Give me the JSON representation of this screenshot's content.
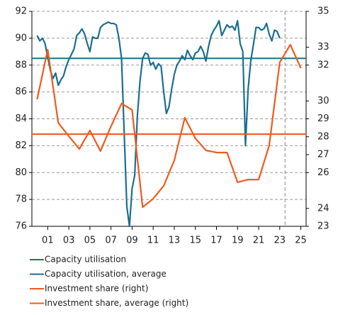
{
  "chart_data": {
    "type": "line",
    "xlim": [
      1999.5,
      2025.5
    ],
    "xticks": [
      {
        "value": 2001,
        "label": "01"
      },
      {
        "value": 2003,
        "label": "03"
      },
      {
        "value": 2005,
        "label": "05"
      },
      {
        "value": 2007,
        "label": "07"
      },
      {
        "value": 2009,
        "label": "09"
      },
      {
        "value": 2011,
        "label": "11"
      },
      {
        "value": 2013,
        "label": "13"
      },
      {
        "value": 2015,
        "label": "15"
      },
      {
        "value": 2017,
        "label": "17"
      },
      {
        "value": 2019,
        "label": "19"
      },
      {
        "value": 2021,
        "label": "21"
      },
      {
        "value": 2023,
        "label": "23"
      },
      {
        "value": 2025,
        "label": "25"
      }
    ],
    "ylim": [
      76,
      92
    ],
    "yticks": [
      76,
      78,
      80,
      82,
      84,
      86,
      88,
      90,
      92
    ],
    "y2lim": [
      23,
      35
    ],
    "y2ticks": [
      23,
      24,
      26,
      27,
      28,
      29,
      30,
      32,
      33,
      35
    ],
    "grid": true,
    "vline": 2023.5,
    "series": [
      {
        "name": "Capacity utilisation",
        "color": "#1b6f8f",
        "axis": "y",
        "x": [
          2000,
          2000.25,
          2000.5,
          2000.75,
          2001,
          2001.25,
          2001.5,
          2001.75,
          2002,
          2002.25,
          2002.5,
          2002.75,
          2003,
          2003.25,
          2003.5,
          2003.75,
          2004,
          2004.25,
          2004.5,
          2004.75,
          2005,
          2005.25,
          2005.5,
          2005.75,
          2006,
          2006.25,
          2006.5,
          2006.75,
          2007,
          2007.25,
          2007.5,
          2007.75,
          2008,
          2008.25,
          2008.5,
          2008.75,
          2009,
          2009.25,
          2009.5,
          2009.75,
          2010,
          2010.25,
          2010.5,
          2010.75,
          2011,
          2011.25,
          2011.5,
          2011.75,
          2012,
          2012.25,
          2012.5,
          2012.75,
          2013,
          2013.25,
          2013.5,
          2013.75,
          2014,
          2014.25,
          2014.5,
          2014.75,
          2015,
          2015.25,
          2015.5,
          2015.75,
          2016,
          2016.25,
          2016.5,
          2016.75,
          2017,
          2017.25,
          2017.5,
          2017.75,
          2018,
          2018.25,
          2018.5,
          2018.75,
          2019,
          2019.25,
          2019.5,
          2019.75,
          2020,
          2020.25,
          2020.5,
          2020.75,
          2021,
          2021.25,
          2021.5,
          2021.75,
          2022,
          2022.25,
          2022.5,
          2022.75,
          2023
        ],
        "values": [
          90.2,
          89.8,
          90.0,
          89.6,
          88.6,
          87.6,
          87.0,
          87.4,
          86.5,
          86.9,
          87.2,
          87.9,
          88.4,
          88.8,
          89.2,
          90.2,
          90.4,
          90.7,
          90.3,
          89.6,
          89.0,
          90.1,
          90.0,
          90.0,
          90.8,
          91.0,
          91.1,
          91.2,
          91.1,
          91.1,
          91.0,
          90.0,
          88.5,
          83.0,
          77.5,
          76.0,
          78.8,
          79.8,
          84.2,
          86.8,
          88.5,
          88.9,
          88.8,
          88.0,
          88.2,
          87.7,
          88.1,
          87.9,
          86.0,
          84.4,
          84.9,
          86.2,
          87.3,
          88.0,
          88.3,
          88.7,
          88.4,
          89.1,
          88.7,
          88.4,
          88.9,
          89.0,
          89.4,
          89.0,
          88.3,
          89.4,
          90.2,
          90.6,
          90.9,
          91.3,
          90.2,
          90.6,
          91.0,
          90.8,
          90.9,
          90.6,
          91.3,
          89.6,
          89.0,
          82.0,
          86.2,
          88.3,
          89.5,
          90.8,
          90.8,
          90.6,
          90.7,
          91.1,
          90.3,
          89.8,
          90.6,
          90.5,
          90.0
        ]
      },
      {
        "name": "Capacity utilisation, average",
        "color": "#1b6f8f",
        "axis": "y",
        "value": 88.5
      },
      {
        "name": "Investment share (right)",
        "color": "#f05a1e",
        "axis": "y2",
        "x": [
          2000,
          2001,
          2002,
          2003,
          2004,
          2005,
          2006,
          2007,
          2008,
          2009,
          2010,
          2011,
          2012,
          2013,
          2014,
          2015,
          2016,
          2017,
          2018,
          2019,
          2020,
          2021,
          2022,
          2023,
          2024,
          2025
        ],
        "values": [
          30.09,
          32.86,
          28.78,
          28.03,
          27.32,
          28.35,
          27.2,
          28.58,
          29.85,
          29.5,
          24.07,
          24.54,
          25.26,
          26.68,
          29.06,
          27.91,
          27.24,
          27.12,
          27.12,
          25.46,
          25.61,
          25.61,
          27.51,
          32.15,
          33.14,
          31.83
        ]
      },
      {
        "name": "Investment share, average (right)",
        "color": "#f05a1e",
        "axis": "y2",
        "value": 28.15
      }
    ]
  }
}
